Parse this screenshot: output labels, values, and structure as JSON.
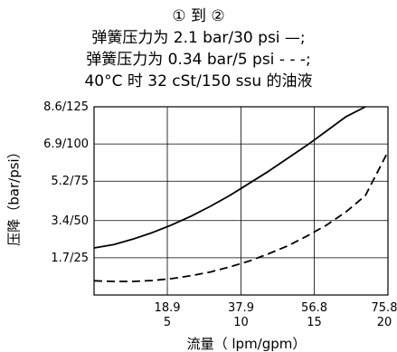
{
  "chart_data": {
    "type": "line",
    "title_lines": [
      "① 到 ②",
      "弹簧压力为 2.1 bar/30 psi —;",
      "弹簧压力为 0.34 bar/5 psi - - -;",
      "40°C 时 32 cSt/150 ssu 的油液"
    ],
    "xlabel": "流量（ lpm/gpm）",
    "ylabel": "压降（bar/psi）",
    "x_ticks": [
      {
        "value": 18.9,
        "label_top": "18.9",
        "label_bottom": "5"
      },
      {
        "value": 37.9,
        "label_top": "37.9",
        "label_bottom": "10"
      },
      {
        "value": 56.8,
        "label_top": "56.8",
        "label_bottom": "15"
      },
      {
        "value": 75.8,
        "label_top": "75.8",
        "label_bottom": "20"
      }
    ],
    "y_ticks": [
      {
        "value": 1.7,
        "label": "1.7/25"
      },
      {
        "value": 3.4,
        "label": "3.4/50"
      },
      {
        "value": 5.2,
        "label": "5.2/75"
      },
      {
        "value": 6.9,
        "label": "6.9/100"
      },
      {
        "value": 8.6,
        "label": "8.6/125"
      }
    ],
    "xlim": [
      0,
      75.8
    ],
    "ylim": [
      0,
      8.6
    ],
    "grid": true,
    "series": [
      {
        "name": "弹簧压力为 2.1 bar/30 psi",
        "style": "solid",
        "x": [
          0,
          5,
          10,
          15,
          20,
          25,
          30,
          35,
          40,
          45,
          50,
          55,
          60,
          65,
          70
        ],
        "y": [
          2.15,
          2.3,
          2.55,
          2.85,
          3.2,
          3.6,
          4.05,
          4.55,
          5.1,
          5.65,
          6.25,
          6.85,
          7.5,
          8.15,
          8.6
        ]
      },
      {
        "name": "弹簧压力为 0.34 bar/5 psi",
        "style": "dashed",
        "x": [
          0,
          5,
          10,
          15,
          20,
          25,
          30,
          35,
          40,
          45,
          50,
          55,
          60,
          65,
          70,
          75.8
        ],
        "y": [
          0.65,
          0.62,
          0.62,
          0.66,
          0.75,
          0.88,
          1.05,
          1.28,
          1.55,
          1.88,
          2.25,
          2.7,
          3.2,
          3.8,
          4.55,
          6.55
        ]
      }
    ],
    "colors": {
      "line": "#000000",
      "grid": "#000000",
      "background": "#ffffff"
    }
  }
}
